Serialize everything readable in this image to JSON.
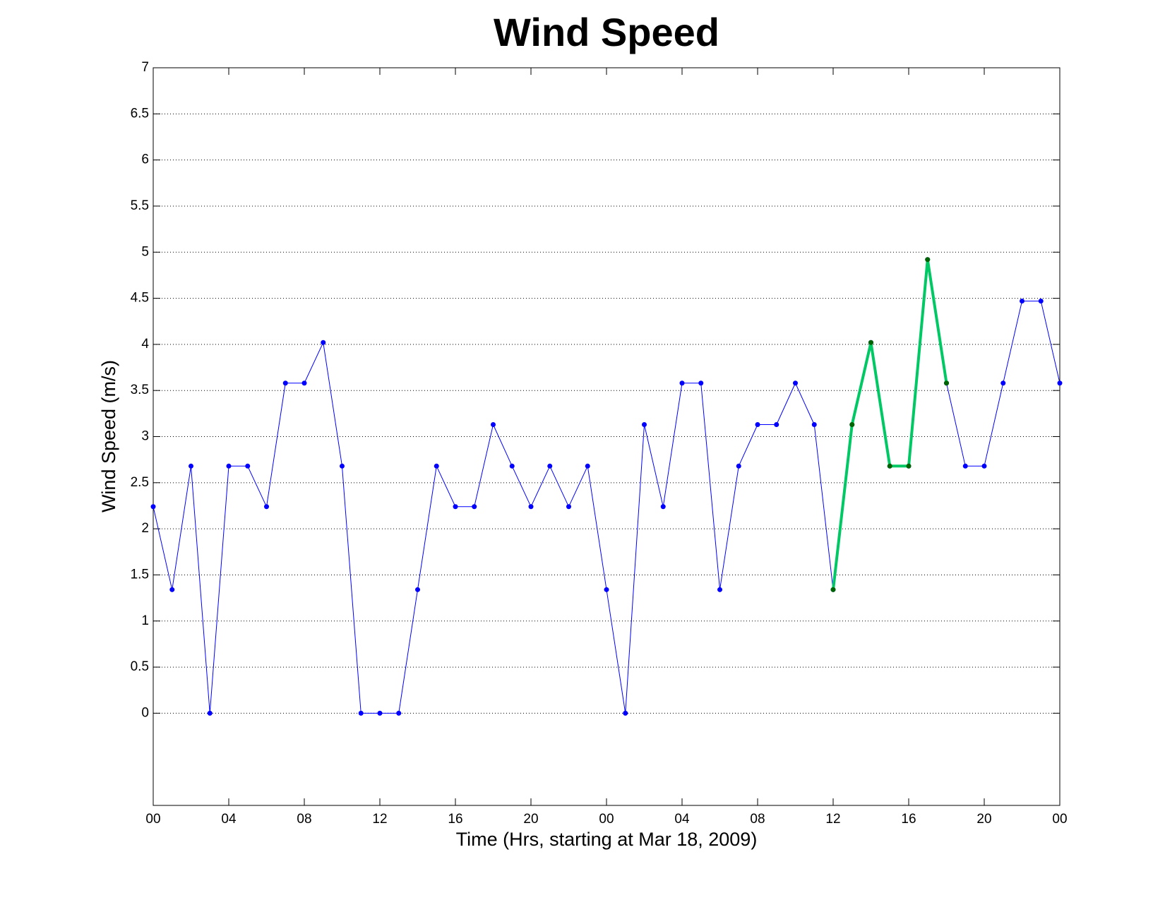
{
  "chart_data": {
    "type": "line",
    "title": "Wind Speed",
    "xlabel": "Time (Hrs, starting at Mar 18, 2009)",
    "ylabel": "Wind Speed (m/s)",
    "x": [
      0,
      1,
      2,
      3,
      4,
      5,
      6,
      7,
      8,
      9,
      10,
      11,
      12,
      13,
      14,
      15,
      16,
      17,
      18,
      19,
      20,
      21,
      22,
      23,
      24,
      25,
      26,
      27,
      28,
      29,
      30,
      31,
      32,
      33,
      34,
      35,
      36,
      37,
      38,
      39,
      40,
      41,
      42,
      43,
      44,
      45,
      46,
      47,
      48
    ],
    "series": [
      {
        "color": "#0000ff",
        "marker_color": "#0000ff",
        "line_width": 1,
        "values": [
          2.24,
          1.34,
          2.68,
          0,
          2.68,
          2.68,
          2.24,
          3.58,
          3.58,
          4.02,
          2.68,
          0,
          0,
          0,
          1.34,
          2.68,
          2.24,
          2.24,
          3.13,
          2.68,
          2.24,
          2.68,
          2.24,
          2.68,
          1.34,
          0,
          3.13,
          2.24,
          3.58,
          3.58,
          1.34,
          2.68,
          3.13,
          3.13,
          3.58,
          3.13,
          1.34,
          3.13,
          4.02,
          2.68,
          2.68,
          4.92,
          3.58,
          2.68,
          2.68,
          3.58,
          4.47,
          4.47,
          3.58
        ]
      },
      {
        "color": "#00c864",
        "marker_color": "#006400",
        "line_width": 4,
        "values": [
          null,
          null,
          null,
          null,
          null,
          null,
          null,
          null,
          null,
          null,
          null,
          null,
          null,
          null,
          null,
          null,
          null,
          null,
          null,
          null,
          null,
          null,
          null,
          null,
          null,
          null,
          null,
          null,
          null,
          null,
          null,
          null,
          null,
          null,
          null,
          null,
          1.34,
          3.13,
          4.02,
          2.68,
          2.68,
          4.92,
          3.58,
          null,
          null,
          null,
          null,
          null,
          null
        ]
      }
    ],
    "xlim": [
      0,
      48
    ],
    "xticks": [
      {
        "value": 0,
        "label": "00"
      },
      {
        "value": 4,
        "label": "04"
      },
      {
        "value": 8,
        "label": "08"
      },
      {
        "value": 12,
        "label": "12"
      },
      {
        "value": 16,
        "label": "16"
      },
      {
        "value": 20,
        "label": "20"
      },
      {
        "value": 24,
        "label": "00"
      },
      {
        "value": 28,
        "label": "04"
      },
      {
        "value": 32,
        "label": "08"
      },
      {
        "value": 36,
        "label": "12"
      },
      {
        "value": 40,
        "label": "16"
      },
      {
        "value": 44,
        "label": "20"
      },
      {
        "value": 48,
        "label": "00"
      }
    ],
    "ylim": [
      -1,
      7
    ],
    "yticks": [
      0,
      0.5,
      1,
      1.5,
      2,
      2.5,
      3,
      3.5,
      4,
      4.5,
      5,
      5.5,
      6,
      6.5,
      7
    ],
    "grid": true
  }
}
